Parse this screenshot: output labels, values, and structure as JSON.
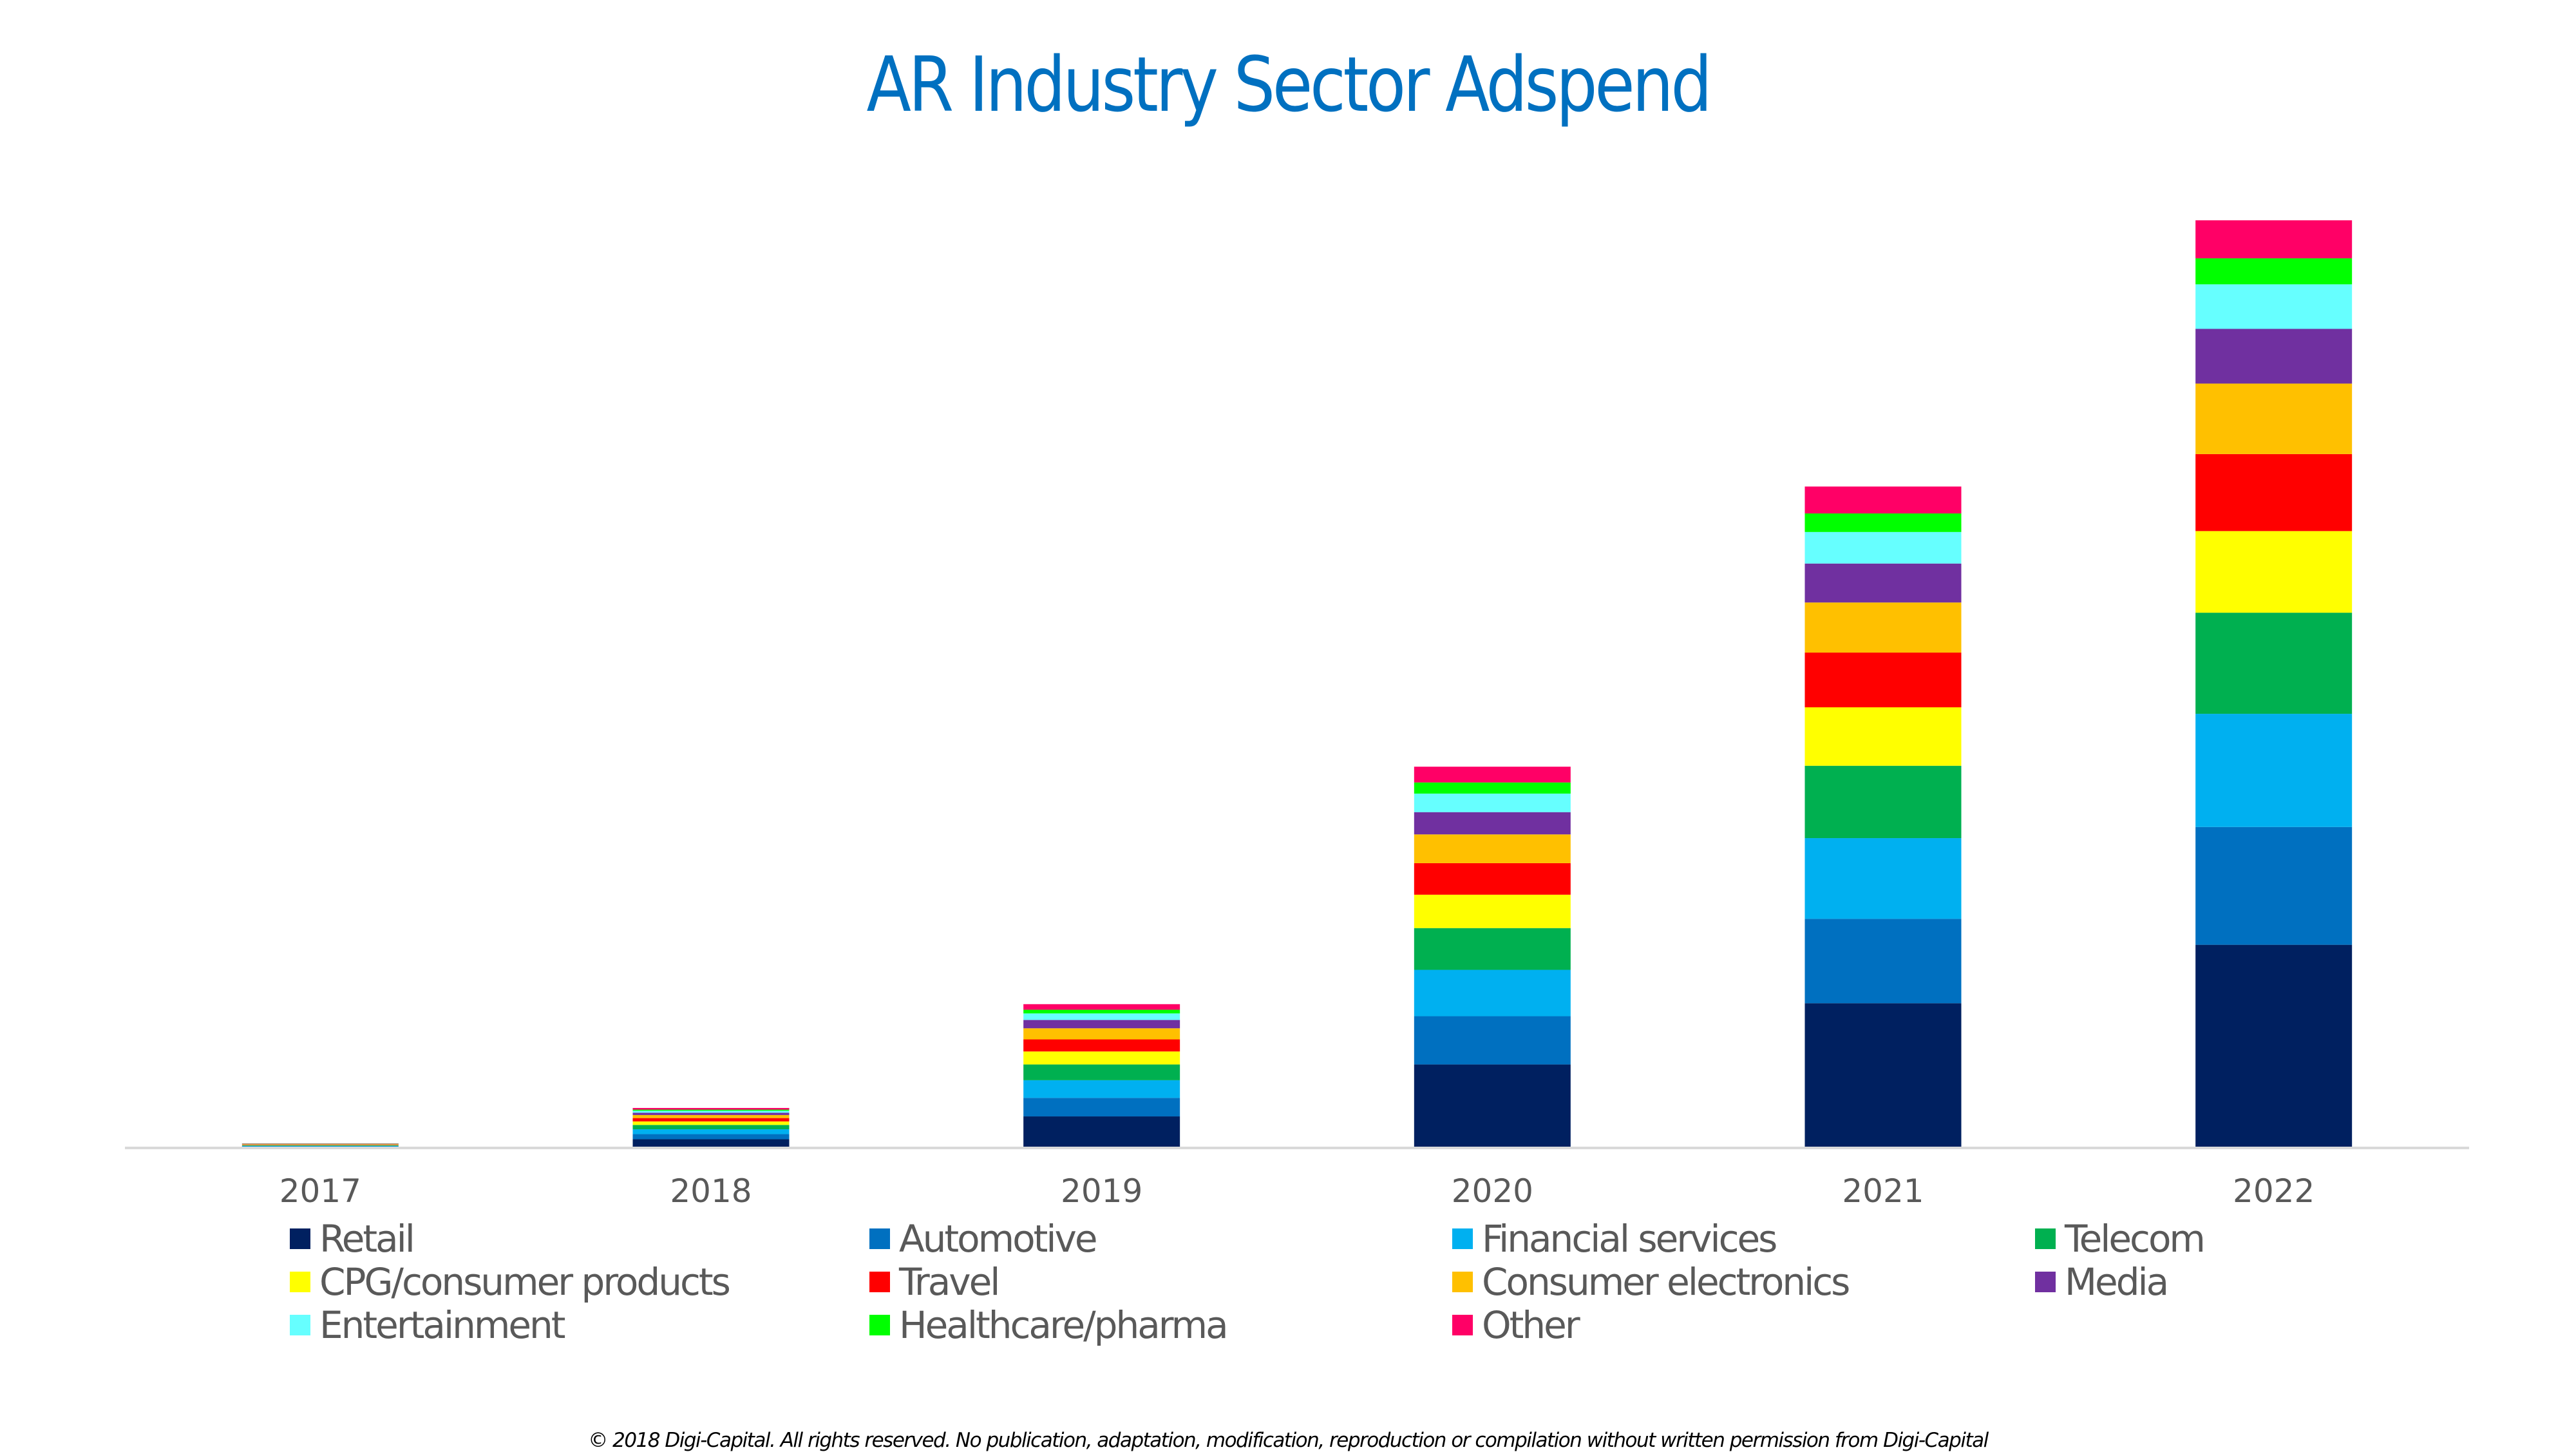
{
  "chart_data": {
    "type": "bar",
    "stacked": true,
    "title": "AR Industry Sector Adspend",
    "xlabel": "",
    "ylabel": "",
    "y_axis_visible": false,
    "units_note": "relative units (2022 total = 100); no y-axis values shown",
    "categories": [
      "2017",
      "2018",
      "2019",
      "2020",
      "2021",
      "2022"
    ],
    "ylim": [
      0,
      100
    ],
    "grid": false,
    "legend_position": "bottom",
    "series": [
      {
        "name": "Retail",
        "color": "#002060",
        "values": [
          0.11,
          0.94,
          3.4,
          9.0,
          15.6,
          21.9
        ]
      },
      {
        "name": "Automotive",
        "color": "#0070c0",
        "values": [
          0.06,
          0.55,
          2.0,
          5.2,
          9.1,
          12.7
        ]
      },
      {
        "name": "Financial services",
        "color": "#00b0f0",
        "values": [
          0.06,
          0.52,
          1.9,
          5.0,
          8.7,
          12.2
        ]
      },
      {
        "name": "Telecom",
        "color": "#00b050",
        "values": [
          0.05,
          0.47,
          1.7,
          4.5,
          7.8,
          10.9
        ]
      },
      {
        "name": "CPG/consumer products",
        "color": "#ffff00",
        "values": [
          0.04,
          0.38,
          1.4,
          3.6,
          6.3,
          8.8
        ]
      },
      {
        "name": "Travel",
        "color": "#ff0000",
        "values": [
          0.04,
          0.36,
          1.3,
          3.4,
          5.9,
          8.3
        ]
      },
      {
        "name": "Consumer electronics",
        "color": "#ffc000",
        "values": [
          0.04,
          0.33,
          1.2,
          3.1,
          5.4,
          7.6
        ]
      },
      {
        "name": "Media",
        "color": "#7030a0",
        "values": [
          0.03,
          0.25,
          0.9,
          2.4,
          4.2,
          5.9
        ]
      },
      {
        "name": "Entertainment",
        "color": "#66ffff",
        "values": [
          0.02,
          0.21,
          0.7,
          2.0,
          3.4,
          4.8
        ]
      },
      {
        "name": "Healthcare/pharma",
        "color": "#00ff00",
        "values": [
          0.01,
          0.12,
          0.4,
          1.2,
          2.0,
          2.8
        ]
      },
      {
        "name": "Other",
        "color": "#ff0066",
        "values": [
          0.02,
          0.18,
          0.6,
          1.7,
          2.9,
          4.1
        ]
      }
    ]
  },
  "footer": "© 2018 Digi-Capital. All rights reserved. No publication, adaptation, modification, reproduction or compilation without written permission from Digi-Capital"
}
